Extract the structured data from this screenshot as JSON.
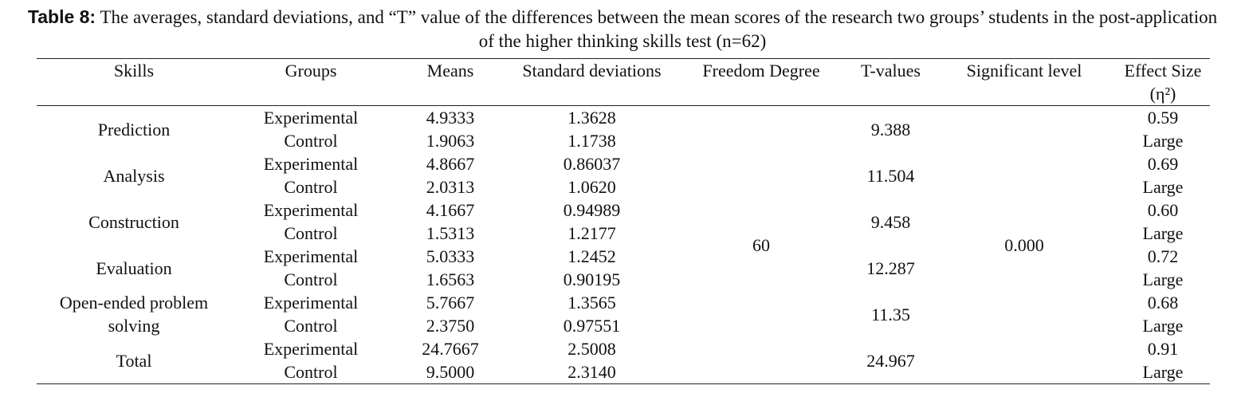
{
  "table": {
    "caption_label": "Table 8:",
    "caption": "The averages, standard deviations, and “T” value of the differences between the mean scores of the research two groups’ students in the post-application of the higher thinking skills test (n=62)",
    "columns": [
      "Skills",
      "Groups",
      "Means",
      "Standard deviations",
      "Freedom Degree",
      "T-values",
      "Significant level",
      "Effect Size (η²)"
    ],
    "freedom_degree": "60",
    "significant_level": "0.000",
    "skills": [
      {
        "name": "Prediction",
        "groups": [
          {
            "group": "Experimental",
            "mean": "4.9333",
            "sd": "1.3628"
          },
          {
            "group": "Control",
            "mean": "1.9063",
            "sd": "1.1738"
          }
        ],
        "t": "9.388",
        "effect": "0.59",
        "effect_label": "Large"
      },
      {
        "name": "Analysis",
        "groups": [
          {
            "group": "Experimental",
            "mean": "4.8667",
            "sd": "0.86037"
          },
          {
            "group": "Control",
            "mean": "2.0313",
            "sd": "1.0620"
          }
        ],
        "t": "11.504",
        "effect": "0.69",
        "effect_label": "Large"
      },
      {
        "name": "Construction",
        "groups": [
          {
            "group": "Experimental",
            "mean": "4.1667",
            "sd": "0.94989"
          },
          {
            "group": "Control",
            "mean": "1.5313",
            "sd": "1.2177"
          }
        ],
        "t": "9.458",
        "effect": "0.60",
        "effect_label": "Large"
      },
      {
        "name": "Evaluation",
        "groups": [
          {
            "group": "Experimental",
            "mean": "5.0333",
            "sd": "1.2452"
          },
          {
            "group": "Control",
            "mean": "1.6563",
            "sd": "0.90195"
          }
        ],
        "t": "12.287",
        "effect": "0.72",
        "effect_label": "Large"
      },
      {
        "name": "Open-ended problem solving",
        "groups": [
          {
            "group": "Experimental",
            "mean": "5.7667",
            "sd": "1.3565"
          },
          {
            "group": "Control",
            "mean": "2.3750",
            "sd": "0.97551"
          }
        ],
        "t": "11.35",
        "effect": "0.68",
        "effect_label": "Large"
      },
      {
        "name": "Total",
        "groups": [
          {
            "group": "Experimental",
            "mean": "24.7667",
            "sd": "2.5008"
          },
          {
            "group": "Control",
            "mean": "9.5000",
            "sd": "2.3140"
          }
        ],
        "t": "24.967",
        "effect": "0.91",
        "effect_label": "Large"
      }
    ]
  }
}
